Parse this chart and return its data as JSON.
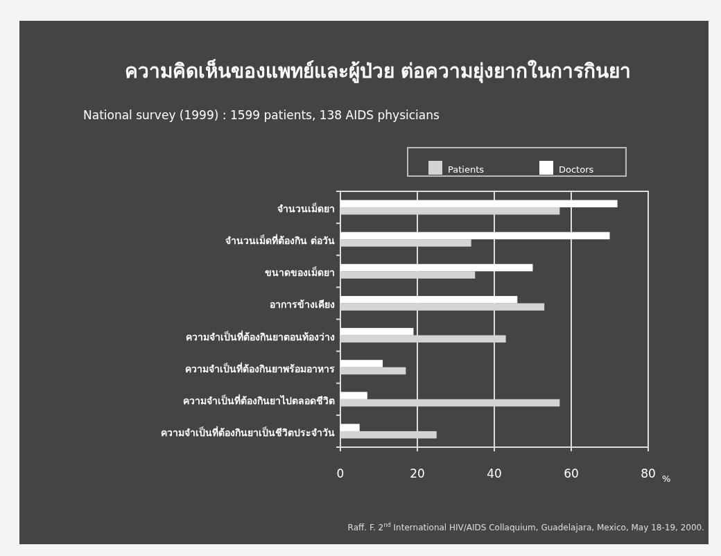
{
  "chart_data": {
    "type": "bar",
    "orientation": "horizontal",
    "title": "ความคิดเห็นของแพทย์และผู้ป่วย ต่อความยุ่งยากในการกินยา",
    "subtitle": "National survey (1999) : 1599 patients, 138 AIDS physicians",
    "xlabel": "%",
    "categories": [
      "จำนวนเม็ดยา",
      "จำนวนเม็ดที่ต้องกิน ต่อวัน",
      "ขนาดของเม็ดยา",
      "อาการข้างเคียง",
      "ความจำเป็นที่ต้องกินยาตอนท้องว่าง",
      "ความจำเป็นที่ต้องกินยาพร้อมอาหาร",
      "ความจำเป็นที่ต้องกินยาไปตลอดชีวิต",
      "ความจำเป็นที่ต้องกินยาเป็นชีวิตประจำวัน"
    ],
    "series": [
      {
        "name": "Patients",
        "color": "#d4d4d4",
        "values": [
          57,
          34,
          35,
          53,
          43,
          17,
          57,
          25
        ]
      },
      {
        "name": "Doctors",
        "color": "#ffffff",
        "values": [
          72,
          70,
          50,
          46,
          19,
          11,
          7,
          5
        ]
      }
    ],
    "xlim": [
      0,
      80
    ],
    "xticks": [
      0,
      20,
      40,
      60,
      80
    ],
    "grid": "x",
    "legend": "top right",
    "annotations": [
      "Raff. F. 2$^{nd}$ International HIV/AIDS Collaquium, Guadelajara, Mexico, May 18-19, 2000."
    ]
  }
}
